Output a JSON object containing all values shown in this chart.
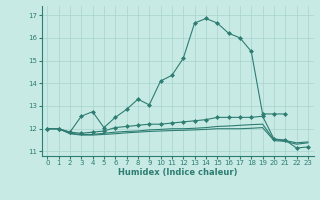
{
  "xlabel": "Humidex (Indice chaleur)",
  "background_color": "#c8eae4",
  "grid_color": "#a8d4ce",
  "line_color": "#2e7d72",
  "xlim": [
    -0.5,
    23.5
  ],
  "ylim": [
    10.8,
    17.4
  ],
  "yticks": [
    11,
    12,
    13,
    14,
    15,
    16,
    17
  ],
  "xticks": [
    0,
    1,
    2,
    3,
    4,
    5,
    6,
    7,
    8,
    9,
    10,
    11,
    12,
    13,
    14,
    15,
    16,
    17,
    18,
    19,
    20,
    21,
    22,
    23
  ],
  "curve1_x": [
    0,
    1,
    2,
    3,
    4,
    5,
    6,
    7,
    8,
    9,
    10,
    11,
    12,
    13,
    14,
    15,
    16,
    17,
    18,
    19,
    20,
    21
  ],
  "curve1_y": [
    12.0,
    12.0,
    11.85,
    12.55,
    12.75,
    12.05,
    12.5,
    12.85,
    13.3,
    13.05,
    14.1,
    14.35,
    15.1,
    16.65,
    16.85,
    16.65,
    16.2,
    16.0,
    15.4,
    12.65,
    12.65,
    12.65
  ],
  "curve2_x": [
    0,
    1,
    2,
    3,
    4,
    5,
    6,
    7,
    8,
    9,
    10,
    11,
    12,
    13,
    14,
    15,
    16,
    17,
    18,
    19,
    20,
    21,
    22,
    23
  ],
  "curve2_y": [
    12.0,
    12.0,
    11.85,
    11.8,
    11.85,
    11.9,
    12.05,
    12.1,
    12.15,
    12.2,
    12.2,
    12.25,
    12.3,
    12.35,
    12.4,
    12.5,
    12.5,
    12.5,
    12.5,
    12.55,
    11.55,
    11.5,
    11.15,
    11.2
  ],
  "curve3_x": [
    0,
    1,
    2,
    3,
    4,
    5,
    6,
    7,
    8,
    9,
    10,
    11,
    12,
    13,
    14,
    15,
    16,
    17,
    18,
    19,
    20,
    21,
    22,
    23
  ],
  "curve3_y": [
    12.0,
    12.0,
    11.8,
    11.75,
    11.75,
    11.8,
    11.85,
    11.88,
    11.9,
    11.95,
    11.97,
    12.0,
    12.0,
    12.02,
    12.05,
    12.1,
    12.12,
    12.15,
    12.18,
    12.2,
    11.52,
    11.48,
    11.38,
    11.42
  ],
  "curve4_x": [
    0,
    1,
    2,
    3,
    4,
    5,
    6,
    7,
    8,
    9,
    10,
    11,
    12,
    13,
    14,
    15,
    16,
    17,
    18,
    19,
    20,
    21,
    22,
    23
  ],
  "curve4_y": [
    12.0,
    12.0,
    11.78,
    11.72,
    11.72,
    11.75,
    11.78,
    11.82,
    11.85,
    11.88,
    11.9,
    11.92,
    11.93,
    11.95,
    11.97,
    12.0,
    12.0,
    12.0,
    12.02,
    12.05,
    11.48,
    11.44,
    11.32,
    11.38
  ]
}
